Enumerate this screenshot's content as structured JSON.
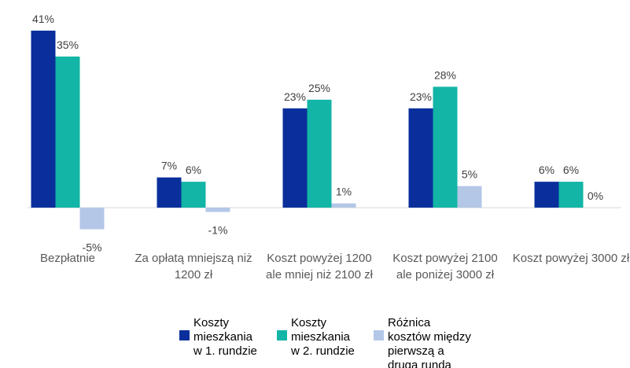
{
  "chart_data": {
    "type": "bar",
    "categories": [
      "Bezpłatnie",
      "Za opłatą mniejszą niż 1200 zł",
      "Koszt powyżej 1200 ale mniej niż 2100 zł",
      "Koszt powyżej 2100 ale poniżej 3000 zł",
      "Koszt powyżej 3000 zł"
    ],
    "series": [
      {
        "name": "Koszty mieszkania w 1. rundzie",
        "color": "#0a2f9c",
        "values": [
          41,
          7,
          23,
          23,
          6
        ],
        "value_labels": [
          "41%",
          "7%",
          "23%",
          "23%",
          "6%"
        ]
      },
      {
        "name": "Koszty mieszkania w 2. rundzie",
        "color": "#12b5a6",
        "values": [
          35,
          6,
          25,
          28,
          6
        ],
        "value_labels": [
          "35%",
          "6%",
          "25%",
          "28%",
          "6%"
        ]
      },
      {
        "name": "Różnica kosztów między pierwszą a drugą rundą",
        "color": "#b4c7e7",
        "values": [
          -5,
          -1,
          1,
          5,
          0
        ],
        "value_labels": [
          "-5%",
          "-1%",
          "1%",
          "5%",
          "0%"
        ]
      }
    ],
    "ylim": [
      -8,
      46
    ],
    "legend": "bottom"
  }
}
